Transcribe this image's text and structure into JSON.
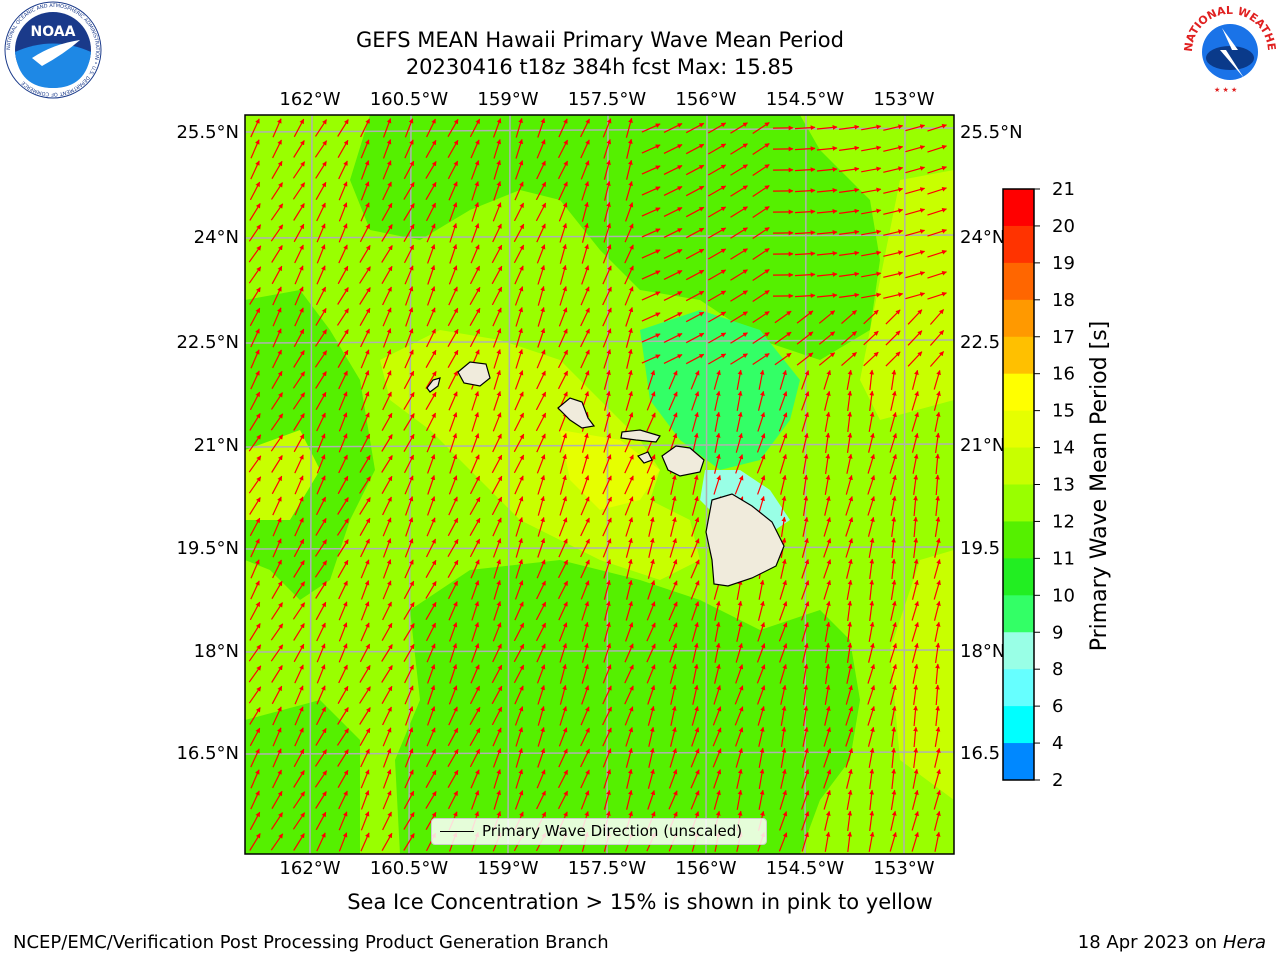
{
  "header": {
    "title_line1": "GEFS MEAN Hawaii Primary Wave Mean Period",
    "title_line2": "20230416 t18z 384h fcst   Max: 15.85"
  },
  "logos": {
    "left": "NOAA",
    "left_ring": "NATIONAL OCEANIC AND ATMOSPHERIC ADMINISTRATION • U.S. DEPARTMENT OF COMMERCE",
    "right_ring": "NATIONAL WEATHER SERVICE"
  },
  "map": {
    "lon_labels": [
      "162°W",
      "160.5°W",
      "159°W",
      "157.5°W",
      "156°W",
      "154.5°W",
      "153°W"
    ],
    "lat_labels_left": [
      "25.5°N",
      "24°N",
      "22.5°N",
      "21°N",
      "19.5°N",
      "18°N",
      "16.5°N"
    ],
    "lat_labels_right": [
      "25.5°N",
      "24°N",
      "22.5",
      "21°N",
      "19.5",
      "18°N",
      "16.5"
    ],
    "legend_label": "Primary Wave Direction (unscaled)",
    "arrow_color": "#ff0000",
    "land_color": "#f0ebdc"
  },
  "colorbar": {
    "label": "Primary Wave Mean Period [s]",
    "ticks": [
      "21",
      "20",
      "19",
      "18",
      "17",
      "16",
      "15",
      "14",
      "13",
      "12",
      "11",
      "10",
      "9",
      "8",
      "6",
      "4",
      "2"
    ],
    "colors": [
      "#ff0000",
      "#ff3300",
      "#ff6600",
      "#ff9900",
      "#ffc000",
      "#ffff00",
      "#e6ff00",
      "#c8ff00",
      "#99ff00",
      "#55f000",
      "#22ee22",
      "#33ff66",
      "#99ffe6",
      "#66ffff",
      "#00ffff",
      "#0088ff",
      "#0000ff"
    ]
  },
  "caption": "Sea Ice Concentration > 15% is shown in pink to yellow",
  "footer": {
    "left": "NCEP/EMC/Verification Post Processing Product Generation Branch",
    "right_prefix": "18 Apr 2023 on ",
    "right_host": "Hera"
  }
}
